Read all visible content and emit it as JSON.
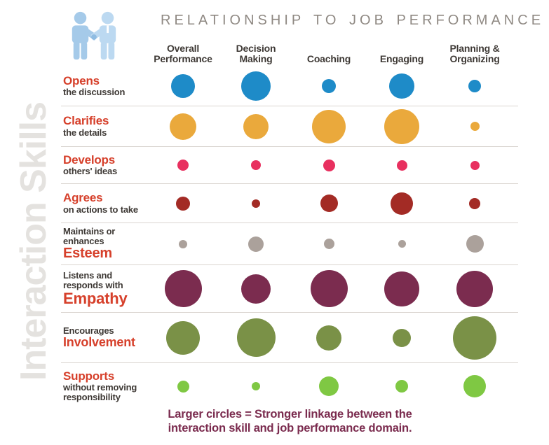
{
  "title": "RELATIONSHIP TO JOB PERFORMANCE",
  "side_label": "Interaction Skills",
  "caption": {
    "line1": "Larger circles = Stronger linkage between the",
    "line2": "interaction skill and job performance domain."
  },
  "colors": {
    "title_gray": "#8F8983",
    "side_label_gray": "#E4E2DF",
    "emphasis_red": "#D6402B",
    "dark_text": "#3E3935",
    "separator": "#DAD5D0",
    "caption_plum": "#7B2C4F",
    "icon_blue_left": "#A5CAE9",
    "icon_blue_right": "#BCD9F1"
  },
  "chart_data": {
    "type": "bubble",
    "title": "RELATIONSHIP TO JOB PERFORMANCE",
    "row_axis_label": "Interaction Skills",
    "column_axis_label": "Relationship to Job Performance",
    "value_encoding": "circle diameter in px; larger circle = stronger linkage between the interaction skill and the job performance domain",
    "legend": "Larger circles = Stronger linkage between the interaction skill and job performance domain.",
    "columns": [
      {
        "label": "Overall Performance",
        "lines": [
          "Overall",
          "Performance"
        ]
      },
      {
        "label": "Decision Making",
        "lines": [
          "Decision",
          "Making"
        ]
      },
      {
        "label": "Coaching",
        "lines": [
          "Coaching"
        ]
      },
      {
        "label": "Engaging",
        "lines": [
          "Engaging"
        ]
      },
      {
        "label": "Planning & Organizing",
        "lines": [
          "Planning &",
          "Organizing"
        ]
      }
    ],
    "rows": [
      {
        "skill": "Opens the discussion",
        "color": "#1E8BC8",
        "label_lines": [
          {
            "text": "Opens",
            "style": "red"
          },
          {
            "text": "the discussion",
            "style": "dark"
          }
        ],
        "values": [
          34,
          42,
          20,
          36,
          18
        ]
      },
      {
        "skill": "Clarifies the details",
        "color": "#EAA93C",
        "label_lines": [
          {
            "text": "Clarifies",
            "style": "red"
          },
          {
            "text": "the details",
            "style": "dark"
          }
        ],
        "values": [
          38,
          36,
          48,
          50,
          13
        ]
      },
      {
        "skill": "Develops others' ideas",
        "color": "#E8305F",
        "label_lines": [
          {
            "text": "Develops",
            "style": "red"
          },
          {
            "text": "others' ideas",
            "style": "dark"
          }
        ],
        "values": [
          16,
          14,
          17,
          15,
          13
        ]
      },
      {
        "skill": "Agrees on actions to take",
        "color": "#A32B25",
        "label_lines": [
          {
            "text": "Agrees",
            "style": "red"
          },
          {
            "text": "on actions to take",
            "style": "dark"
          }
        ],
        "values": [
          20,
          12,
          25,
          32,
          16
        ]
      },
      {
        "skill": "Maintains or enhances Esteem",
        "color": "#ABA19B",
        "label_lines": [
          {
            "text": "Maintains or",
            "style": "dark"
          },
          {
            "text": "enhances",
            "style": "dark"
          },
          {
            "text": "Esteem",
            "style": "red-lg"
          }
        ],
        "values": [
          12,
          22,
          15,
          11,
          25
        ]
      },
      {
        "skill": "Listens and responds with Empathy",
        "color": "#7B2C4F",
        "label_lines": [
          {
            "text": "Listens and",
            "style": "dark"
          },
          {
            "text": "responds with",
            "style": "dark"
          },
          {
            "text": "Empathy",
            "style": "red-xl"
          }
        ],
        "values": [
          53,
          42,
          53,
          50,
          52
        ]
      },
      {
        "skill": "Encourages Involvement",
        "color": "#7A9147",
        "label_lines": [
          {
            "text": "Encourages",
            "style": "dark"
          },
          {
            "text": "Involvement",
            "style": "red-md"
          }
        ],
        "values": [
          48,
          55,
          36,
          26,
          62
        ]
      },
      {
        "skill": "Supports without removing responsibility",
        "color": "#7FC843",
        "label_lines": [
          {
            "text": "Supports",
            "style": "red"
          },
          {
            "text": "without removing",
            "style": "dark"
          },
          {
            "text": "responsibility",
            "style": "dark"
          }
        ],
        "values": [
          17,
          12,
          28,
          18,
          32
        ]
      }
    ]
  }
}
